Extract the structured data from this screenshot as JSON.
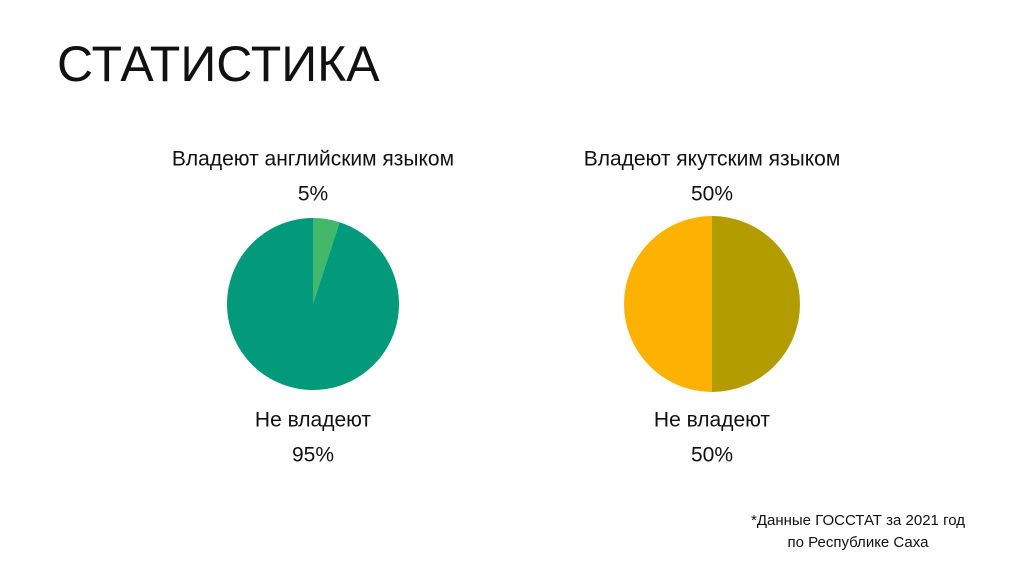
{
  "title": "СТАТИСТИКА",
  "footnote": [
    "*Данные ГОССТАТ за 2021 год",
    "по Республике Саха"
  ],
  "chart_data": [
    {
      "type": "pie",
      "categories": [
        "Владеют английским языком",
        "Не владеют"
      ],
      "values": [
        5,
        95
      ],
      "value_labels": [
        "5%",
        "95%"
      ],
      "colors": [
        "#41b86a",
        "#039a7c"
      ]
    },
    {
      "type": "pie",
      "categories": [
        "Владеют якутским языком",
        "Не владеют"
      ],
      "values": [
        50,
        50
      ],
      "value_labels": [
        "50%",
        "50%"
      ],
      "colors": [
        "#b39c00",
        "#fdb100"
      ]
    }
  ]
}
